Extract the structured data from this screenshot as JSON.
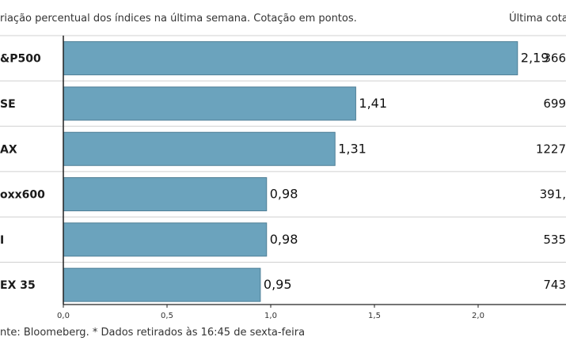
{
  "header": {
    "subtitle": "riação percentual dos índices na última semana. Cotação em pontos.",
    "last_column_header": "Última cota"
  },
  "footer": {
    "source": "nte: Bloomeberg. * Dados retirados às 16:45 de sexta-feira"
  },
  "colors": {
    "bar": "#6ba3bd",
    "bar_stroke": "#4f7f96",
    "gridline": "#d0d0d0",
    "axis": "#222222"
  },
  "chart_data": {
    "type": "bar",
    "orientation": "horizontal",
    "categories": [
      "&P500",
      "SE",
      "AX",
      "oxx600",
      "I",
      "EX 35"
    ],
    "values": [
      2.19,
      1.41,
      1.31,
      0.98,
      0.98,
      0.95
    ],
    "value_labels": [
      "2,19",
      "1,41",
      "1,31",
      "0,98",
      "0,98",
      "0,95"
    ],
    "last_quote_labels": [
      "366",
      "699",
      "1227",
      "391,",
      "535",
      "743"
    ],
    "xlim": [
      0,
      2.5
    ],
    "xticks": [
      0.0,
      0.5,
      1.0,
      1.5,
      2.0
    ],
    "xtick_labels": [
      "0,0",
      "0,5",
      "1,0",
      "1,5",
      "2,0"
    ],
    "grid": "horizontal-separators"
  }
}
